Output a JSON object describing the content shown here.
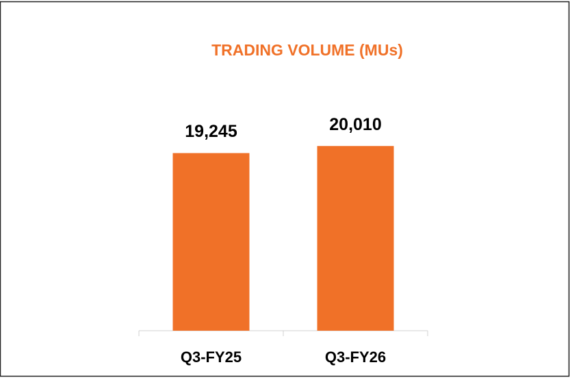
{
  "chart_data": {
    "type": "bar",
    "title": "TRADING VOLUME (MUs)",
    "categories": [
      "Q3-FY25",
      "Q3-FY26"
    ],
    "values": [
      19245,
      20010
    ],
    "value_labels": [
      "19,245",
      "20,010"
    ],
    "color": "#f07128",
    "ylim": [
      0,
      25000
    ]
  }
}
